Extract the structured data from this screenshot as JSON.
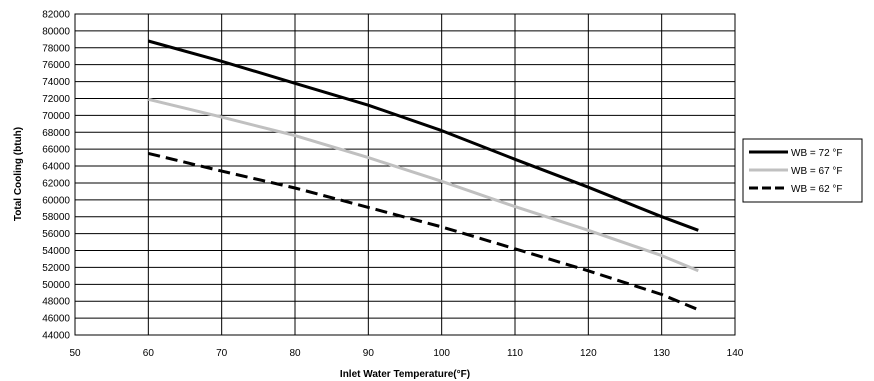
{
  "chart_data": {
    "type": "line",
    "xlabel": "Inlet Water Temperature(°F)",
    "ylabel": "Total Cooling (btuh)",
    "xlim": [
      50,
      140
    ],
    "ylim": [
      44000,
      82000
    ],
    "x_ticks": [
      50,
      60,
      70,
      80,
      90,
      100,
      110,
      120,
      130,
      140
    ],
    "y_ticks": [
      44000,
      46000,
      48000,
      50000,
      52000,
      54000,
      56000,
      58000,
      60000,
      62000,
      64000,
      66000,
      68000,
      70000,
      72000,
      74000,
      76000,
      78000,
      80000,
      82000
    ],
    "grid": true,
    "legend_position": "right",
    "series": [
      {
        "name": "WB = 72 °F",
        "color": "#000000",
        "style": "solid",
        "x": [
          60,
          70,
          80,
          90,
          100,
          110,
          120,
          130,
          135
        ],
        "y": [
          78800,
          76400,
          73800,
          71200,
          68200,
          64800,
          61500,
          58000,
          56400
        ]
      },
      {
        "name": "WB = 67 °F",
        "color": "#c0c0c0",
        "style": "solid",
        "x": [
          60,
          70,
          80,
          90,
          100,
          110,
          120,
          130,
          135
        ],
        "y": [
          71900,
          69800,
          67600,
          65000,
          62200,
          59200,
          56400,
          53400,
          51600
        ]
      },
      {
        "name": "WB = 62 °F",
        "color": "#000000",
        "style": "dashed",
        "x": [
          60,
          70,
          80,
          90,
          100,
          110,
          120,
          130,
          135
        ],
        "y": [
          65500,
          63400,
          61400,
          59100,
          56800,
          54200,
          51600,
          48800,
          47000
        ]
      }
    ]
  }
}
